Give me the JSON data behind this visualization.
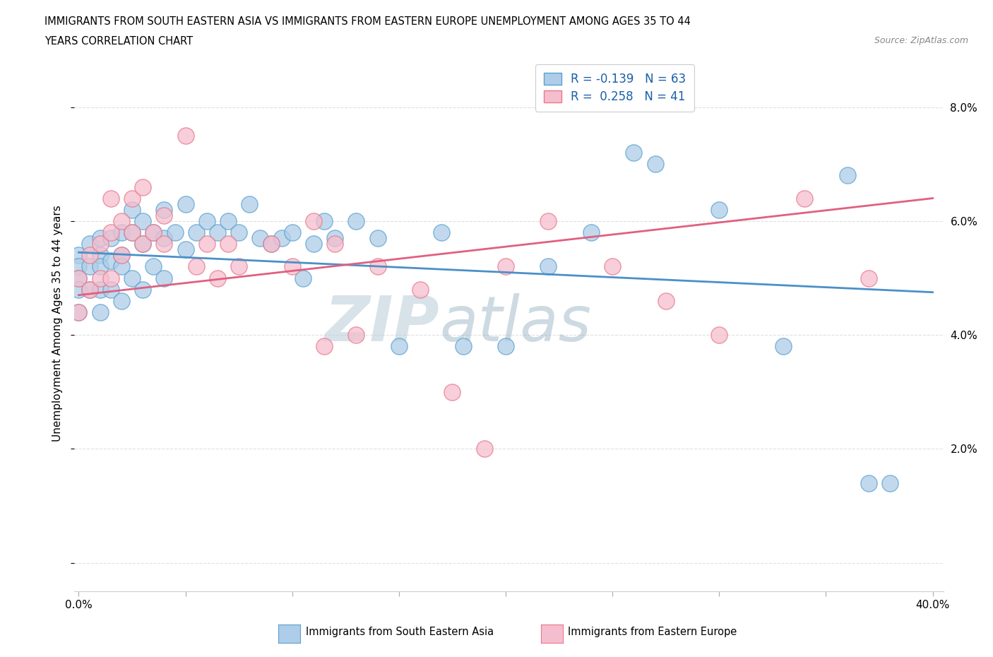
{
  "title_line1": "IMMIGRANTS FROM SOUTH EASTERN ASIA VS IMMIGRANTS FROM EASTERN EUROPE UNEMPLOYMENT AMONG AGES 35 TO 44",
  "title_line2": "YEARS CORRELATION CHART",
  "source_text": "Source: ZipAtlas.com",
  "ylabel": "Unemployment Among Ages 35 to 44 years",
  "color_blue": "#aecde8",
  "color_pink": "#f5bece",
  "color_blue_edge": "#5aa0d0",
  "color_pink_edge": "#e8788a",
  "color_blue_line": "#4a90c8",
  "color_pink_line": "#e06080",
  "blue_scatter_x": [
    0.0,
    0.0,
    0.0,
    0.0,
    0.0,
    0.005,
    0.005,
    0.005,
    0.01,
    0.01,
    0.01,
    0.01,
    0.01,
    0.015,
    0.015,
    0.015,
    0.02,
    0.02,
    0.02,
    0.02,
    0.025,
    0.025,
    0.025,
    0.03,
    0.03,
    0.03,
    0.035,
    0.035,
    0.04,
    0.04,
    0.04,
    0.045,
    0.05,
    0.05,
    0.055,
    0.06,
    0.065,
    0.07,
    0.075,
    0.08,
    0.085,
    0.09,
    0.095,
    0.1,
    0.105,
    0.11,
    0.115,
    0.12,
    0.13,
    0.14,
    0.15,
    0.17,
    0.18,
    0.2,
    0.22,
    0.24,
    0.26,
    0.27,
    0.3,
    0.33,
    0.36,
    0.37,
    0.38
  ],
  "blue_scatter_y": [
    0.054,
    0.052,
    0.05,
    0.048,
    0.044,
    0.056,
    0.052,
    0.048,
    0.057,
    0.054,
    0.052,
    0.048,
    0.044,
    0.057,
    0.053,
    0.048,
    0.058,
    0.054,
    0.052,
    0.046,
    0.062,
    0.058,
    0.05,
    0.06,
    0.056,
    0.048,
    0.058,
    0.052,
    0.062,
    0.057,
    0.05,
    0.058,
    0.063,
    0.055,
    0.058,
    0.06,
    0.058,
    0.06,
    0.058,
    0.063,
    0.057,
    0.056,
    0.057,
    0.058,
    0.05,
    0.056,
    0.06,
    0.057,
    0.06,
    0.057,
    0.038,
    0.058,
    0.038,
    0.038,
    0.052,
    0.058,
    0.072,
    0.07,
    0.062,
    0.038,
    0.068,
    0.014,
    0.014
  ],
  "pink_scatter_x": [
    0.0,
    0.0,
    0.005,
    0.005,
    0.01,
    0.01,
    0.015,
    0.015,
    0.015,
    0.02,
    0.02,
    0.025,
    0.025,
    0.03,
    0.03,
    0.035,
    0.04,
    0.04,
    0.05,
    0.055,
    0.06,
    0.065,
    0.07,
    0.075,
    0.09,
    0.1,
    0.11,
    0.115,
    0.12,
    0.13,
    0.14,
    0.16,
    0.175,
    0.19,
    0.2,
    0.22,
    0.25,
    0.275,
    0.3,
    0.34,
    0.37
  ],
  "pink_scatter_y": [
    0.05,
    0.044,
    0.054,
    0.048,
    0.056,
    0.05,
    0.064,
    0.058,
    0.05,
    0.06,
    0.054,
    0.064,
    0.058,
    0.066,
    0.056,
    0.058,
    0.061,
    0.056,
    0.075,
    0.052,
    0.056,
    0.05,
    0.056,
    0.052,
    0.056,
    0.052,
    0.06,
    0.038,
    0.056,
    0.04,
    0.052,
    0.048,
    0.03,
    0.02,
    0.052,
    0.06,
    0.052,
    0.046,
    0.04,
    0.064,
    0.05
  ],
  "blue_line_x": [
    0.0,
    0.4
  ],
  "blue_line_y_start": 0.0545,
  "blue_line_y_end": 0.0475,
  "pink_line_x": [
    0.0,
    0.4
  ],
  "pink_line_y_start": 0.047,
  "pink_line_y_end": 0.064,
  "xlim_min": -0.002,
  "xlim_max": 0.405,
  "ylim_min": -0.005,
  "ylim_max": 0.089,
  "background_color": "#ffffff",
  "grid_color": "#e0e0e0",
  "watermark_text1": "ZIP",
  "watermark_text2": "atlas",
  "watermark_color": "#c8d8e8",
  "legend_bottom_label1": "Immigrants from South Eastern Asia",
  "legend_bottom_label2": "Immigrants from Eastern Europe"
}
